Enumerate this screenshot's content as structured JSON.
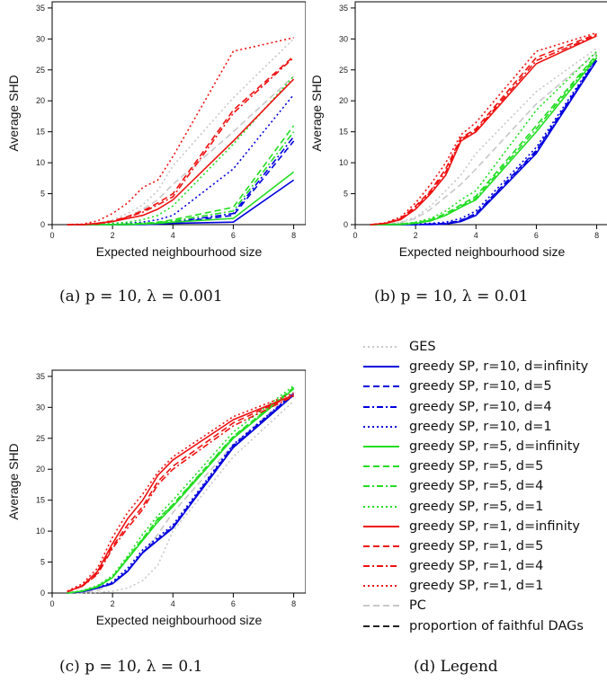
{
  "captions": {
    "a": "(a)  p = 10,  λ = 0.001",
    "b": "(b)  p = 10,  λ = 0.01",
    "c": "(c)  p = 10,  λ = 0.1",
    "d": "(d) Legend"
  },
  "legend": [
    {
      "label": "GES",
      "color": "#c8c8c8",
      "style": "dotted"
    },
    {
      "label": "greedy SP, r=10, d=infinity",
      "color": "#0000dd",
      "style": "solid"
    },
    {
      "label": "greedy SP, r=10, d=5",
      "color": "#0000dd",
      "style": "dashed"
    },
    {
      "label": "greedy SP, r=10, d=4",
      "color": "#0000dd",
      "style": "dotdash"
    },
    {
      "label": "greedy SP, r=10, d=1",
      "color": "#0000dd",
      "style": "dotted"
    },
    {
      "label": "greedy SP, r=5, d=infinity",
      "color": "#22dd22",
      "style": "solid"
    },
    {
      "label": "greedy SP, r=5, d=5",
      "color": "#22dd22",
      "style": "dashed"
    },
    {
      "label": "greedy SP, r=5, d=4",
      "color": "#22dd22",
      "style": "dotdash"
    },
    {
      "label": "greedy SP, r=5, d=1",
      "color": "#22dd22",
      "style": "dotted"
    },
    {
      "label": "greedy SP, r=1, d=infinity",
      "color": "#ee1111",
      "style": "solid"
    },
    {
      "label": "greedy SP, r=1, d=5",
      "color": "#ee1111",
      "style": "dashed"
    },
    {
      "label": "greedy SP, r=1, d=4",
      "color": "#ee1111",
      "style": "dotdash"
    },
    {
      "label": "greedy SP, r=1, d=1",
      "color": "#ee1111",
      "style": "dotted"
    },
    {
      "label": "PC",
      "color": "#c8c8c8",
      "style": "dashed"
    },
    {
      "label": "proportion of faithful DAGs",
      "color": "#222222",
      "style": "dashed"
    }
  ],
  "chart_data": [
    {
      "panel": "a",
      "type": "line",
      "xlabel": "Expected neighbourhood size",
      "ylabel": "Average SHD",
      "x": [
        0.5,
        1,
        1.5,
        2,
        2.5,
        3,
        3.5,
        4,
        6,
        8
      ],
      "xlim": [
        0,
        8.4
      ],
      "ylim": [
        0,
        36
      ],
      "xticks": [
        0,
        2,
        4,
        6,
        8
      ],
      "yticks": [
        0,
        5,
        10,
        15,
        20,
        25,
        30,
        35
      ],
      "grid": false,
      "series": [
        {
          "name": "GES",
          "values": [
            0,
            0,
            0.2,
            0.8,
            1.8,
            3.2,
            5.5,
            9.5,
            20.5,
            30
          ],
          "color": "#c8c8c8",
          "style": "dotted"
        },
        {
          "name": "PC",
          "values": [
            0,
            0,
            0.1,
            0.5,
            1.2,
            2.5,
            4,
            6.5,
            15,
            24
          ],
          "color": "#c8c8c8",
          "style": "dashed"
        },
        {
          "name": "greedy SP, r=10, d=infinity",
          "values": [
            0,
            0,
            0,
            0,
            0,
            0,
            0.1,
            0.2,
            0.4,
            7.2
          ],
          "color": "#0000dd",
          "style": "solid"
        },
        {
          "name": "greedy SP, r=10, d=5",
          "values": [
            0,
            0,
            0,
            0,
            0,
            0.1,
            0.1,
            0.3,
            1.5,
            13.5
          ],
          "color": "#0000dd",
          "style": "dashed"
        },
        {
          "name": "greedy SP, r=10, d=4",
          "values": [
            0,
            0,
            0,
            0,
            0,
            0.1,
            0.2,
            0.4,
            1.8,
            14.2
          ],
          "color": "#0000dd",
          "style": "dotdash"
        },
        {
          "name": "greedy SP, r=10, d=1",
          "values": [
            0,
            0,
            0,
            0.1,
            0.2,
            0.4,
            0.8,
            1.5,
            9,
            21
          ],
          "color": "#0000dd",
          "style": "dotted"
        },
        {
          "name": "greedy SP, r=5, d=infinity",
          "values": [
            0,
            0,
            0,
            0,
            0,
            0.1,
            0.2,
            0.4,
            1,
            8.5
          ],
          "color": "#22dd22",
          "style": "solid"
        },
        {
          "name": "greedy SP, r=5, d=5",
          "values": [
            0,
            0,
            0,
            0,
            0.1,
            0.2,
            0.4,
            0.8,
            2.8,
            16
          ],
          "color": "#22dd22",
          "style": "dashed"
        },
        {
          "name": "greedy SP, r=5, d=4",
          "values": [
            0,
            0,
            0,
            0,
            0.1,
            0.2,
            0.3,
            0.6,
            2.2,
            15
          ],
          "color": "#22dd22",
          "style": "dotdash"
        },
        {
          "name": "greedy SP, r=5, d=1",
          "values": [
            0,
            0,
            0,
            0.2,
            0.4,
            0.8,
            1.5,
            3,
            13,
            24
          ],
          "color": "#22dd22",
          "style": "dotted"
        },
        {
          "name": "greedy SP, r=1, d=infinity",
          "values": [
            0,
            0,
            0.2,
            0.5,
            1,
            1.5,
            2.5,
            4,
            13.5,
            23.5
          ],
          "color": "#ee1111",
          "style": "solid"
        },
        {
          "name": "greedy SP, r=1, d=5",
          "values": [
            0,
            0,
            0.2,
            0.6,
            1.3,
            2.2,
            3.5,
            5,
            18.5,
            27.2
          ],
          "color": "#ee1111",
          "style": "dashed"
        },
        {
          "name": "greedy SP, r=1, d=4",
          "values": [
            0,
            0,
            0.1,
            0.5,
            1.2,
            2,
            3.2,
            4.5,
            18,
            27
          ],
          "color": "#ee1111",
          "style": "dotdash"
        },
        {
          "name": "greedy SP, r=1, d=1",
          "values": [
            0,
            0.1,
            0.6,
            1.8,
            3.5,
            6,
            7.2,
            11,
            28,
            30.2
          ],
          "color": "#ee1111",
          "style": "dotted"
        }
      ]
    },
    {
      "panel": "b",
      "type": "line",
      "xlabel": "Expected neighbourhood size",
      "ylabel": "Average SHD",
      "x": [
        0.5,
        1,
        1.5,
        2,
        2.5,
        3,
        3.5,
        4,
        6,
        8
      ],
      "xlim": [
        0,
        8.4
      ],
      "ylim": [
        0,
        36
      ],
      "xticks": [
        0,
        2,
        4,
        6,
        8
      ],
      "yticks": [
        0,
        5,
        10,
        15,
        20,
        25,
        30,
        35
      ],
      "grid": false,
      "series": [
        {
          "name": "GES",
          "values": [
            0,
            0.1,
            0.4,
            1.2,
            3,
            5.5,
            8,
            11.5,
            21.5,
            28.5
          ],
          "color": "#c8c8c8",
          "style": "dotted"
        },
        {
          "name": "PC",
          "values": [
            0,
            0.1,
            0.3,
            1,
            2.5,
            4.5,
            6.5,
            9,
            19.5,
            27.8
          ],
          "color": "#c8c8c8",
          "style": "dashed"
        },
        {
          "name": "greedy SP, r=10, d=infinity",
          "values": [
            0,
            0,
            0,
            0,
            0,
            0.1,
            0.5,
            1.5,
            11.5,
            26.5
          ],
          "color": "#0000dd",
          "style": "solid"
        },
        {
          "name": "greedy SP, r=10, d=5",
          "values": [
            0,
            0,
            0,
            0,
            0.1,
            0.2,
            0.7,
            1.8,
            12,
            26.8
          ],
          "color": "#0000dd",
          "style": "dashed"
        },
        {
          "name": "greedy SP, r=10, d=4",
          "values": [
            0,
            0,
            0,
            0,
            0.1,
            0.2,
            0.6,
            1.7,
            11.8,
            26.7
          ],
          "color": "#0000dd",
          "style": "dotdash"
        },
        {
          "name": "greedy SP, r=10, d=1",
          "values": [
            0,
            0,
            0,
            0.1,
            0.2,
            0.4,
            1,
            2.2,
            12.5,
            27
          ],
          "color": "#0000dd",
          "style": "dotted"
        },
        {
          "name": "greedy SP, r=5, d=infinity",
          "values": [
            0,
            0,
            0,
            0.2,
            0.6,
            1.5,
            2.8,
            4,
            15,
            27
          ],
          "color": "#22dd22",
          "style": "solid"
        },
        {
          "name": "greedy SP, r=5, d=5",
          "values": [
            0,
            0,
            0.1,
            0.3,
            0.8,
            1.8,
            3.2,
            4.6,
            16,
            27.5
          ],
          "color": "#22dd22",
          "style": "dashed"
        },
        {
          "name": "greedy SP, r=5, d=4",
          "values": [
            0,
            0,
            0.1,
            0.3,
            0.7,
            1.6,
            3,
            4.3,
            15.5,
            27.3
          ],
          "color": "#22dd22",
          "style": "dotdash"
        },
        {
          "name": "greedy SP, r=5, d=1",
          "values": [
            0,
            0,
            0.1,
            0.4,
            1,
            2.2,
            4,
            5.5,
            18.5,
            28
          ],
          "color": "#22dd22",
          "style": "dotted"
        },
        {
          "name": "greedy SP, r=1, d=infinity",
          "values": [
            0,
            0.2,
            0.8,
            2.5,
            5,
            8,
            13.5,
            15,
            26,
            30.5
          ],
          "color": "#ee1111",
          "style": "solid"
        },
        {
          "name": "greedy SP, r=1, d=5",
          "values": [
            0,
            0.2,
            1,
            3,
            5.5,
            9,
            14,
            15.5,
            27,
            30.8
          ],
          "color": "#ee1111",
          "style": "dashed"
        },
        {
          "name": "greedy SP, r=1, d=4",
          "values": [
            0,
            0.2,
            0.9,
            2.8,
            5.3,
            8.5,
            13.8,
            15.2,
            26.5,
            30.6
          ],
          "color": "#ee1111",
          "style": "dotdash"
        },
        {
          "name": "greedy SP, r=1, d=1",
          "values": [
            0,
            0.3,
            1.2,
            3.5,
            6.5,
            10,
            14.5,
            16.5,
            28,
            31
          ],
          "color": "#ee1111",
          "style": "dotted"
        }
      ]
    },
    {
      "panel": "c",
      "type": "line",
      "xlabel": "Expected neighbourhood size",
      "ylabel": "Average SHD",
      "x": [
        0.5,
        1,
        1.5,
        2,
        2.5,
        3,
        3.5,
        4,
        6,
        8
      ],
      "xlim": [
        0,
        8.4
      ],
      "ylim": [
        0,
        36
      ],
      "xticks": [
        0,
        2,
        4,
        6,
        8
      ],
      "yticks": [
        0,
        5,
        10,
        15,
        20,
        25,
        30,
        35
      ],
      "grid": false,
      "series": [
        {
          "name": "GES",
          "values": [
            0,
            0,
            0.1,
            0.3,
            0.8,
            2,
            4.5,
            10,
            22,
            31
          ],
          "color": "#c8c8c8",
          "style": "dotted"
        },
        {
          "name": "PC",
          "values": [
            0,
            0.1,
            0.4,
            1.5,
            3.5,
            6.5,
            9.5,
            13,
            24,
            32.5
          ],
          "color": "#c8c8c8",
          "style": "dashed"
        },
        {
          "name": "greedy SP, r=10, d=infinity",
          "values": [
            0,
            0.2,
            0.8,
            1.5,
            3.5,
            6.5,
            8.5,
            10.5,
            23.5,
            32
          ],
          "color": "#0000dd",
          "style": "solid"
        },
        {
          "name": "greedy SP, r=10, d=5",
          "values": [
            0,
            0.2,
            0.8,
            1.6,
            3.6,
            6.6,
            8.7,
            10.7,
            23.8,
            32.2
          ],
          "color": "#0000dd",
          "style": "dashed"
        },
        {
          "name": "greedy SP, r=10, d=4",
          "values": [
            0,
            0.2,
            0.8,
            1.6,
            3.6,
            6.6,
            8.6,
            10.6,
            23.6,
            32.1
          ],
          "color": "#0000dd",
          "style": "dotdash"
        },
        {
          "name": "greedy SP, r=10, d=1",
          "values": [
            0,
            0.2,
            0.9,
            1.8,
            4,
            7,
            9,
            11,
            24,
            32.3
          ],
          "color": "#0000dd",
          "style": "dotted"
        },
        {
          "name": "greedy SP, r=5, d=infinity",
          "values": [
            0,
            0.3,
            1,
            2.5,
            5.5,
            8.5,
            11.5,
            14,
            25,
            33
          ],
          "color": "#22dd22",
          "style": "solid"
        },
        {
          "name": "greedy SP, r=5, d=5",
          "values": [
            0,
            0.3,
            1.1,
            2.6,
            5.7,
            8.8,
            12,
            14.3,
            25.3,
            33.2
          ],
          "color": "#22dd22",
          "style": "dashed"
        },
        {
          "name": "greedy SP, r=5, d=4",
          "values": [
            0,
            0.3,
            1,
            2.5,
            5.6,
            8.7,
            11.8,
            14.2,
            25.2,
            33.1
          ],
          "color": "#22dd22",
          "style": "dotdash"
        },
        {
          "name": "greedy SP, r=5, d=1",
          "values": [
            0,
            0.4,
            1.2,
            2.8,
            6,
            9.5,
            12.5,
            15,
            26,
            33.5
          ],
          "color": "#22dd22",
          "style": "dotted"
        },
        {
          "name": "greedy SP, r=1, d=infinity",
          "values": [
            0.2,
            1.2,
            3.5,
            8,
            12,
            15,
            19,
            21.5,
            28,
            32
          ],
          "color": "#ee1111",
          "style": "solid"
        },
        {
          "name": "greedy SP, r=1, d=5",
          "values": [
            0.2,
            1.1,
            3.2,
            7.5,
            11,
            14,
            18,
            20.5,
            27.5,
            32
          ],
          "color": "#ee1111",
          "style": "dashed"
        },
        {
          "name": "greedy SP, r=1, d=4",
          "values": [
            0.2,
            1.1,
            3,
            7.2,
            10.5,
            13.5,
            17.5,
            20,
            27,
            31.8
          ],
          "color": "#ee1111",
          "style": "dotdash"
        },
        {
          "name": "greedy SP, r=1, d=1",
          "values": [
            0.3,
            1.5,
            4,
            9,
            13,
            16,
            19.5,
            22,
            28.5,
            32.3
          ],
          "color": "#ee1111",
          "style": "dotted"
        }
      ]
    }
  ]
}
